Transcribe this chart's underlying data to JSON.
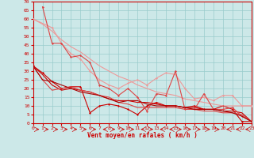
{
  "title": "",
  "xlabel": "Vent moyen/en rafales ( km/h )",
  "xlim": [
    0,
    23
  ],
  "ylim": [
    0,
    70
  ],
  "yticks": [
    0,
    5,
    10,
    15,
    20,
    25,
    30,
    35,
    40,
    45,
    50,
    55,
    60,
    65,
    70
  ],
  "xticks": [
    0,
    1,
    2,
    3,
    4,
    5,
    6,
    7,
    8,
    9,
    10,
    11,
    12,
    13,
    14,
    15,
    16,
    17,
    18,
    19,
    20,
    21,
    22,
    23
  ],
  "bg_color": "#cce8e8",
  "grid_color": "#99cccc",
  "axis_color": "#cc0000",
  "series": [
    {
      "x": [
        0,
        1,
        2,
        3,
        4,
        5,
        6,
        7,
        8,
        9,
        10,
        11,
        12,
        13,
        14,
        15,
        16,
        17,
        18,
        19,
        20,
        21,
        22,
        23
      ],
      "y": [
        33,
        29,
        24,
        20,
        21,
        21,
        6,
        10,
        11,
        10,
        8,
        5,
        10,
        12,
        10,
        10,
        9,
        10,
        8,
        8,
        10,
        8,
        1,
        1
      ],
      "color": "#cc0000",
      "lw": 0.8,
      "marker": "D",
      "ms": 1.5
    },
    {
      "x": [
        0,
        1,
        2,
        3,
        4,
        5,
        6,
        7,
        8,
        9,
        10,
        11,
        12,
        13,
        14,
        15,
        16,
        17,
        18,
        19,
        20,
        21,
        22,
        23
      ],
      "y": [
        33,
        28,
        22,
        19,
        20,
        19,
        18,
        16,
        14,
        13,
        13,
        12,
        12,
        11,
        10,
        10,
        9,
        9,
        8,
        8,
        7,
        7,
        6,
        1
      ],
      "color": "#cc0000",
      "lw": 0.8,
      "marker": null,
      "ms": 0
    },
    {
      "x": [
        0,
        2,
        3,
        4,
        5,
        6,
        7,
        8,
        9,
        10,
        11,
        12,
        13,
        14,
        15,
        16,
        17,
        18,
        19,
        20,
        21,
        22,
        23
      ],
      "y": [
        60,
        55,
        46,
        40,
        37,
        30,
        25,
        22,
        20,
        23,
        25,
        22,
        26,
        29,
        28,
        20,
        14,
        15,
        13,
        16,
        16,
        10,
        10
      ],
      "color": "#ee9999",
      "lw": 0.8,
      "marker": "D",
      "ms": 1.5
    },
    {
      "x": [
        0,
        1,
        2,
        3,
        4,
        5,
        6,
        7,
        8,
        9,
        10,
        11,
        12,
        13,
        14,
        15,
        16,
        17,
        18,
        19,
        20,
        21,
        22,
        23
      ],
      "y": [
        60,
        57,
        53,
        48,
        44,
        41,
        37,
        33,
        30,
        27,
        25,
        22,
        20,
        18,
        17,
        16,
        14,
        13,
        12,
        11,
        10,
        10,
        10,
        10
      ],
      "color": "#ee9999",
      "lw": 0.8,
      "marker": null,
      "ms": 0
    },
    {
      "x": [
        1,
        2,
        3,
        4,
        5,
        6,
        7,
        8,
        9,
        10,
        11,
        12,
        13,
        14,
        15,
        16,
        17,
        18,
        19,
        20,
        21,
        22,
        23
      ],
      "y": [
        67,
        46,
        46,
        38,
        39,
        35,
        22,
        20,
        16,
        20,
        15,
        7,
        17,
        16,
        30,
        8,
        8,
        17,
        8,
        8,
        9,
        4,
        1
      ],
      "color": "#dd4444",
      "lw": 0.8,
      "marker": "D",
      "ms": 1.5
    },
    {
      "x": [
        0,
        1,
        2,
        3,
        4,
        5,
        6,
        7,
        8,
        9,
        10,
        11,
        12,
        13,
        14,
        15,
        16,
        17,
        18,
        19,
        20,
        21,
        22,
        23
      ],
      "y": [
        33,
        25,
        19,
        20,
        21,
        19,
        18,
        16,
        15,
        12,
        11,
        9,
        9,
        9,
        9,
        9,
        8,
        8,
        7,
        7,
        6,
        6,
        5,
        1
      ],
      "color": "#dd4444",
      "lw": 0.8,
      "marker": null,
      "ms": 0
    },
    {
      "x": [
        0,
        1,
        2,
        3,
        4,
        5,
        6,
        7,
        8,
        9,
        10,
        11,
        12,
        13,
        14,
        15,
        16,
        17,
        18,
        19,
        20,
        21,
        22,
        23
      ],
      "y": [
        33,
        25,
        24,
        22,
        20,
        18,
        17,
        16,
        14,
        12,
        13,
        13,
        11,
        10,
        10,
        10,
        9,
        8,
        8,
        8,
        7,
        6,
        4,
        1
      ],
      "color": "#aa0000",
      "lw": 0.8,
      "marker": null,
      "ms": 0
    }
  ],
  "arrow_dirs": [
    1,
    1,
    1,
    1,
    1,
    1,
    1,
    -1,
    1,
    1,
    1,
    -1,
    1,
    -1,
    -1,
    1,
    1,
    1,
    1,
    1,
    -1,
    -1,
    -1
  ]
}
